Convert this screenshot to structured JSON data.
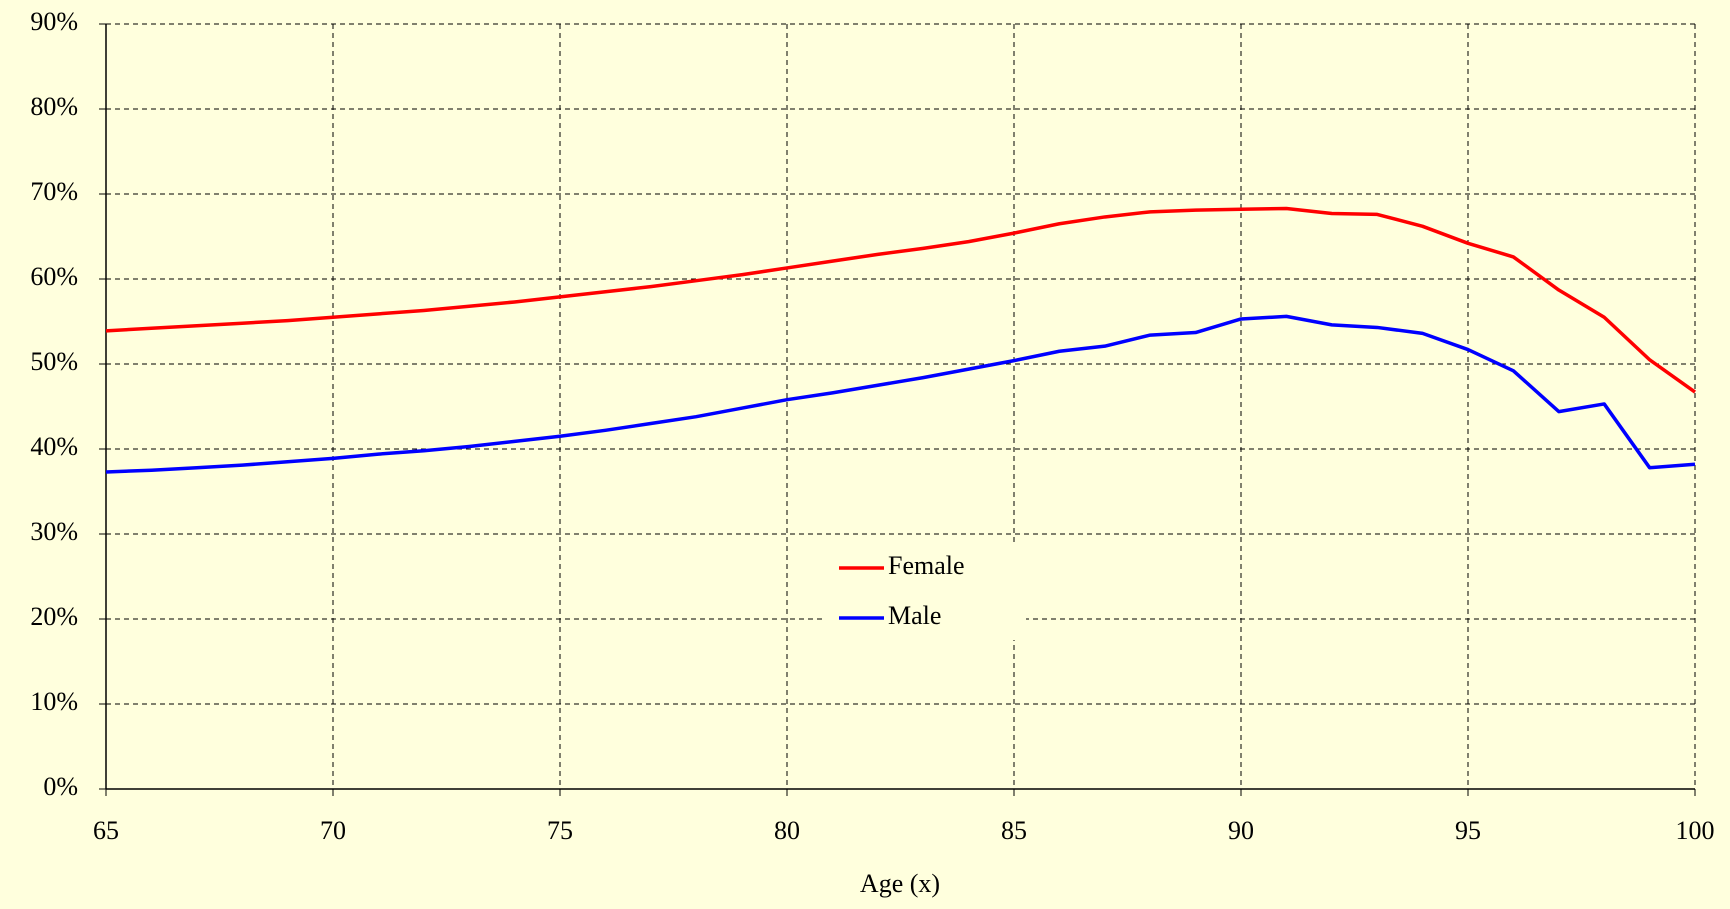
{
  "chart_data": {
    "type": "line",
    "x_label": "Age (x)",
    "x": [
      65,
      66,
      67,
      68,
      69,
      70,
      71,
      72,
      73,
      74,
      75,
      76,
      77,
      78,
      79,
      80,
      81,
      82,
      83,
      84,
      85,
      86,
      87,
      88,
      89,
      90,
      91,
      92,
      93,
      94,
      95,
      96,
      97,
      98,
      99,
      100
    ],
    "series": [
      {
        "name": "Female",
        "color": "#ff0000",
        "values": [
          53.9,
          54.2,
          54.5,
          54.8,
          55.1,
          55.5,
          55.9,
          56.3,
          56.8,
          57.3,
          57.9,
          58.5,
          59.1,
          59.8,
          60.5,
          61.3,
          62.1,
          62.9,
          63.6,
          64.4,
          65.4,
          66.5,
          67.3,
          67.9,
          68.1,
          68.2,
          68.3,
          67.7,
          67.6,
          66.2,
          64.2,
          62.6,
          58.7,
          55.5,
          50.5,
          46.7
        ]
      },
      {
        "name": "Male",
        "color": "#0000ff",
        "values": [
          37.3,
          37.5,
          37.8,
          38.1,
          38.5,
          38.9,
          39.4,
          39.8,
          40.3,
          40.9,
          41.5,
          42.2,
          43.0,
          43.8,
          44.8,
          45.8,
          46.6,
          47.5,
          48.4,
          49.4,
          50.4,
          51.5,
          52.1,
          53.4,
          53.7,
          55.3,
          55.6,
          54.6,
          54.3,
          53.6,
          51.7,
          49.2,
          44.4,
          45.3,
          37.8,
          38.2
        ]
      }
    ],
    "xlim": [
      65,
      100
    ],
    "xticks": [
      65,
      70,
      75,
      80,
      85,
      90,
      95,
      100
    ],
    "ylim": [
      0,
      90
    ],
    "yticks": [
      {
        "value": 0,
        "label": "0%"
      },
      {
        "value": 10,
        "label": "10%"
      },
      {
        "value": 20,
        "label": "20%"
      },
      {
        "value": 30,
        "label": "30%"
      },
      {
        "value": 40,
        "label": "40%"
      },
      {
        "value": 50,
        "label": "50%"
      },
      {
        "value": 60,
        "label": "60%"
      },
      {
        "value": 70,
        "label": "70%"
      },
      {
        "value": 80,
        "label": "80%"
      },
      {
        "value": 90,
        "label": "90%"
      }
    ],
    "grid": true,
    "legend": "center"
  }
}
